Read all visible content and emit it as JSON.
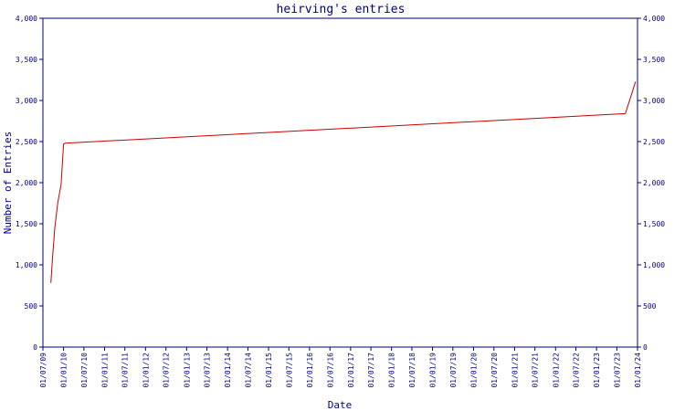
{
  "chart_data": {
    "type": "line",
    "title": "heirving's entries",
    "xlabel": "Date",
    "ylabel": "Number of Entries",
    "ylim": [
      0,
      4000
    ],
    "yticks": [
      0,
      500,
      1000,
      1500,
      2000,
      2500,
      3000,
      3500,
      4000
    ],
    "ytick_labels": [
      "0",
      "500",
      "1,000",
      "1,500",
      "2,000",
      "2,500",
      "3,000",
      "3,500",
      "4,000"
    ],
    "xlim": [
      "2009-07-01",
      "2024-01-01"
    ],
    "xtick_dates": [
      "2009-07-01",
      "2010-01-01",
      "2010-07-01",
      "2011-01-01",
      "2011-07-01",
      "2012-01-01",
      "2012-07-01",
      "2013-01-01",
      "2013-07-01",
      "2014-01-01",
      "2014-07-01",
      "2015-01-01",
      "2015-07-01",
      "2016-01-01",
      "2016-07-01",
      "2017-01-01",
      "2017-07-01",
      "2018-01-01",
      "2018-07-01",
      "2019-01-01",
      "2019-07-01",
      "2020-01-01",
      "2020-07-01",
      "2021-01-01",
      "2021-07-01",
      "2022-01-01",
      "2022-07-01",
      "2023-01-01",
      "2023-07-01",
      "2024-01-01"
    ],
    "xtick_labels": [
      "01/07/09",
      "01/01/10",
      "01/07/10",
      "01/01/11",
      "01/07/11",
      "01/01/12",
      "01/07/12",
      "01/01/13",
      "01/07/13",
      "01/01/14",
      "01/07/14",
      "01/01/15",
      "01/07/15",
      "01/01/16",
      "01/07/16",
      "01/01/17",
      "01/07/17",
      "01/01/18",
      "01/07/18",
      "01/01/19",
      "01/07/19",
      "01/01/20",
      "01/07/20",
      "01/01/21",
      "01/07/21",
      "01/01/22",
      "01/07/22",
      "01/01/23",
      "01/07/23",
      "01/01/24"
    ],
    "grid": false,
    "series": [
      {
        "color": "#cc0000",
        "x": [
          "2009-09-10",
          "2009-09-25",
          "2009-10-15",
          "2009-11-10",
          "2009-12-10",
          "2010-01-01",
          "2010-01-15",
          "2023-09-15",
          "2023-12-15"
        ],
        "y": [
          780,
          1100,
          1450,
          1750,
          1980,
          2470,
          2480,
          2840,
          3230
        ]
      }
    ]
  },
  "colors": {
    "axis": "#000080",
    "line": "#cc0000",
    "background": "#ffffff"
  }
}
